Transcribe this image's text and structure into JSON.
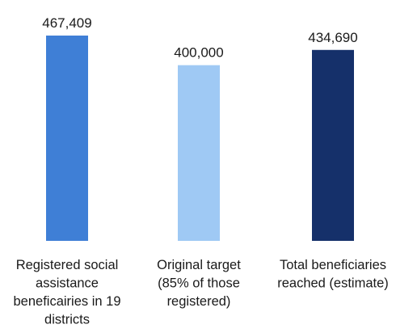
{
  "chart_data": {
    "type": "bar",
    "title": "",
    "xlabel": "",
    "ylabel": "",
    "ylim": [
      0,
      467409
    ],
    "grid": false,
    "legend": "none",
    "categories": [
      "Registered social assistance beneficairies in 19 districts",
      "Original target (85% of those registered)",
      "Total beneficiaries reached (estimate)"
    ],
    "category_label_lines": [
      [
        "Registered social",
        "assistance",
        "beneficairies in 19",
        "districts"
      ],
      [
        "Original target",
        "(85% of those",
        "registered)"
      ],
      [
        "Total beneficiaries",
        "reached (estimate)"
      ]
    ],
    "values": [
      467409,
      400000,
      434690
    ],
    "value_labels": [
      "467,409",
      "400,000",
      "434,690"
    ],
    "colors": [
      "#3f7fd6",
      "#9fc9f4",
      "#15306a"
    ]
  }
}
